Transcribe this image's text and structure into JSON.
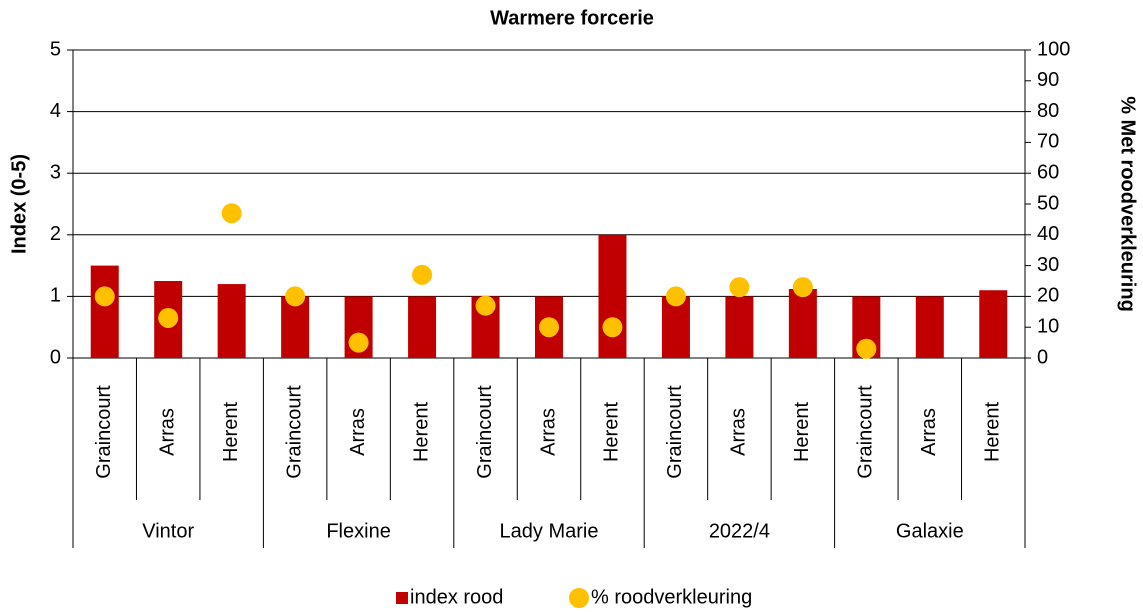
{
  "chart_data": {
    "type": "bar",
    "title": "Warmere forcerie",
    "ylabel": "Index (0-5)",
    "y2label": "% Met roodverkleuring",
    "categories": [
      "Graincourt",
      "Arras",
      "Herent",
      "Graincourt",
      "Arras",
      "Herent",
      "Graincourt",
      "Arras",
      "Herent",
      "Graincourt",
      "Arras",
      "Herent",
      "Graincourt",
      "Arras",
      "Herent"
    ],
    "groups": [
      "Vintor",
      "Flexine",
      "Lady Marie",
      "2022/4",
      "Galaxie"
    ],
    "series": [
      {
        "name": "index rood",
        "type": "bar",
        "color": "#c00000",
        "values": [
          1.5,
          1.25,
          1.2,
          1.0,
          1.0,
          1.0,
          1.0,
          1.0,
          2.0,
          1.0,
          1.0,
          1.12,
          1.0,
          1.0,
          1.1
        ]
      },
      {
        "name": "% roodverkleuring",
        "type": "scatter",
        "axis": "y2",
        "color": "#ffc000",
        "values": [
          20,
          13,
          47,
          20,
          5,
          27,
          17,
          10,
          10,
          20,
          23,
          23,
          3,
          null,
          null
        ]
      }
    ],
    "ylim": [
      0,
      5
    ],
    "yticks": [
      0,
      1,
      2,
      3,
      4,
      5
    ],
    "y2lim": [
      0,
      100
    ],
    "y2ticks": [
      0,
      10,
      20,
      30,
      40,
      50,
      60,
      70,
      80,
      90,
      100
    ],
    "grid": true,
    "legend": "bottom"
  }
}
